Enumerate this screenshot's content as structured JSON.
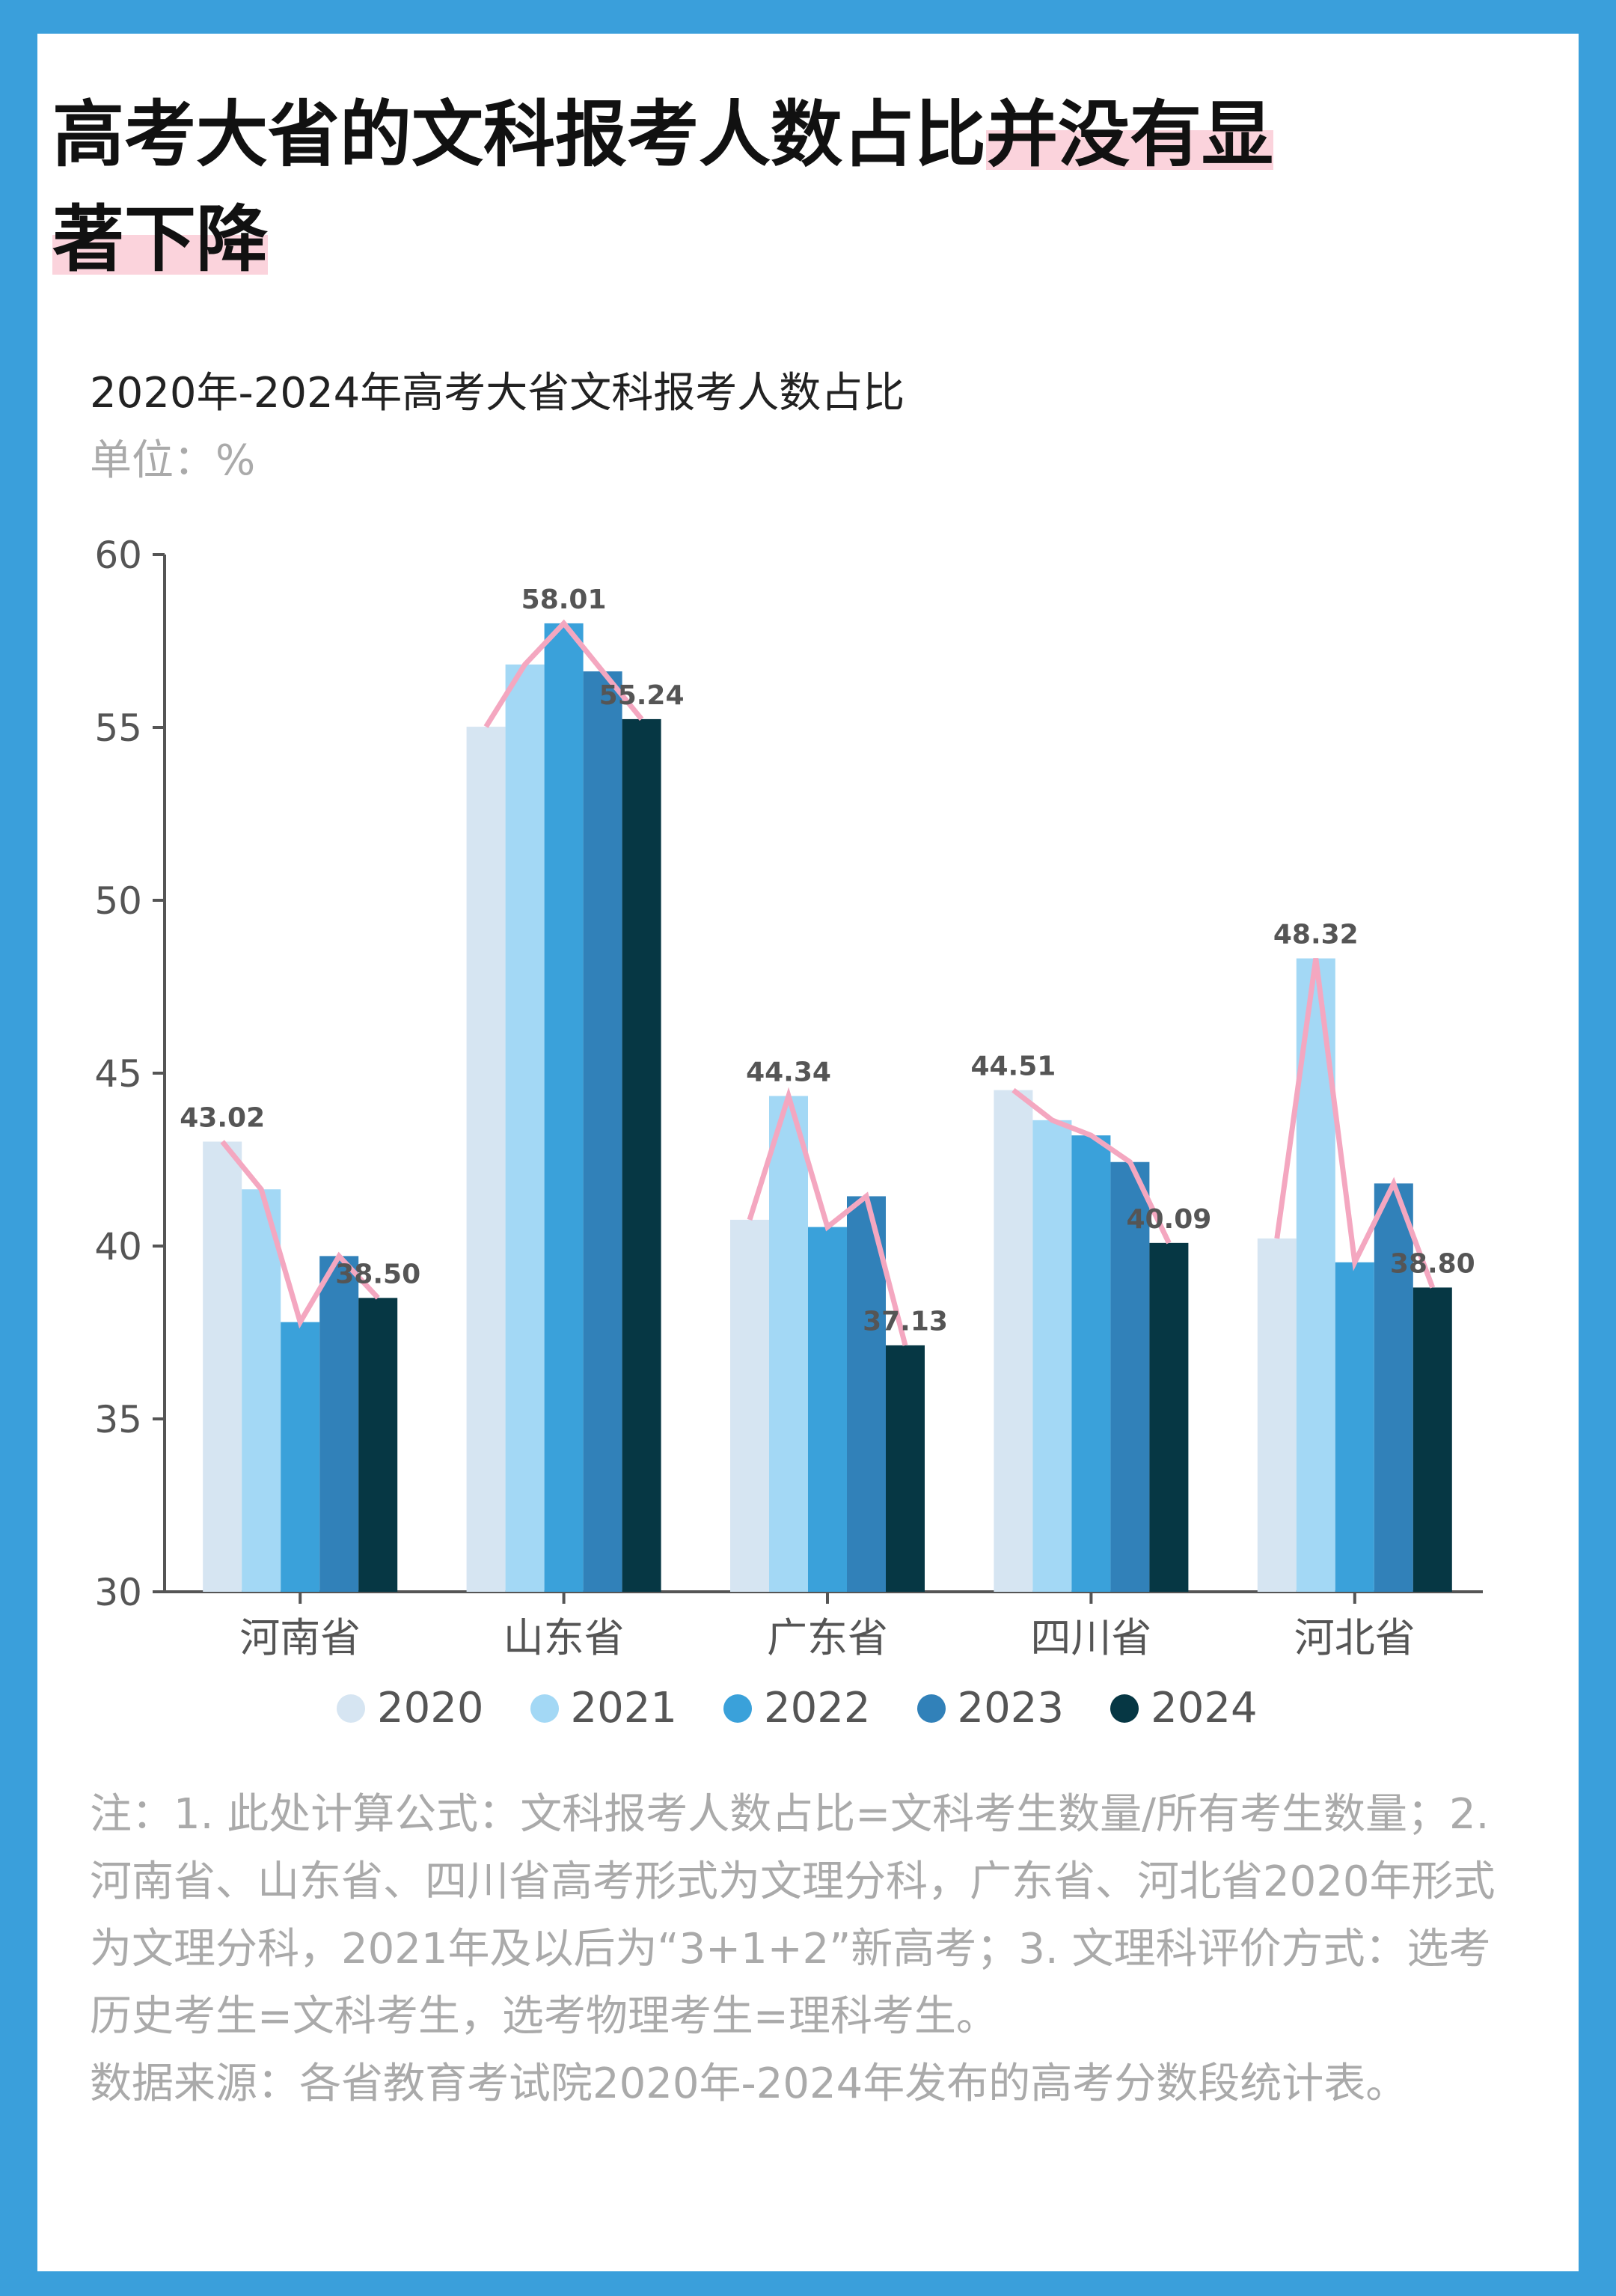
{
  "title_part1": "高考大省的文科报考人数占比",
  "title_part2": "并没有显",
  "title_part3": "著下降",
  "colors": {
    "border": "#3a9fdb",
    "highlight": "#fbd3dc",
    "line": "#f4a7c0",
    "series": [
      "#d6e5f2",
      "#a3d8f5",
      "#3aa1da",
      "#3181b9",
      "#063744"
    ]
  },
  "chart_data": {
    "type": "bar",
    "title": "2020年-2024年高考大省文科报考人数占比",
    "unit": "单位：%",
    "categories": [
      "河南省",
      "山东省",
      "广东省",
      "四川省",
      "河北省"
    ],
    "ylim": [
      30,
      60
    ],
    "yticks": [
      "30",
      "35",
      "40",
      "45",
      "50",
      "55",
      "60"
    ],
    "grid": false,
    "legend_position": "bottom",
    "series": [
      {
        "name": "2020",
        "values": [
          43.02,
          55.02,
          40.76,
          44.51,
          40.22
        ]
      },
      {
        "name": "2021",
        "values": [
          41.64,
          56.82,
          44.34,
          43.64,
          48.32
        ]
      },
      {
        "name": "2022",
        "values": [
          37.8,
          58.01,
          40.55,
          43.2,
          39.53
        ]
      },
      {
        "name": "2023",
        "values": [
          39.71,
          56.62,
          41.44,
          42.43,
          41.81
        ]
      },
      {
        "name": "2024",
        "values": [
          38.5,
          55.24,
          37.13,
          40.09,
          38.8
        ]
      }
    ],
    "data_labels": [
      {
        "category": "河南省",
        "series": "2020",
        "text": "43.02"
      },
      {
        "category": "河南省",
        "series": "2024",
        "text": "38.50"
      },
      {
        "category": "山东省",
        "series": "2022",
        "text": "58.01"
      },
      {
        "category": "山东省",
        "series": "2024",
        "text": "55.24"
      },
      {
        "category": "广东省",
        "series": "2021",
        "text": "44.34"
      },
      {
        "category": "广东省",
        "series": "2024",
        "text": "37.13"
      },
      {
        "category": "四川省",
        "series": "2020",
        "text": "44.51"
      },
      {
        "category": "四川省",
        "series": "2024",
        "text": "40.09"
      },
      {
        "category": "河北省",
        "series": "2021",
        "text": "48.32"
      },
      {
        "category": "河北省",
        "series": "2024",
        "text": "38.80"
      }
    ],
    "trend_line": "per-category line through each bar top"
  },
  "notes": "注：1. 此处计算公式：文科报考人数占比=文科考生数量/所有考生数量；2. 河南省、山东省、四川省高考形式为文理分科，广东省、河北省2020年形式为文理分科，2021年及以后为“3+1+2”新高考；3. 文理科评价方式：选考历史考生=文科考生，选考物理考生=理科考生。",
  "source": "数据来源：各省教育考试院2020年-2024年发布的高考分数段统计表。"
}
